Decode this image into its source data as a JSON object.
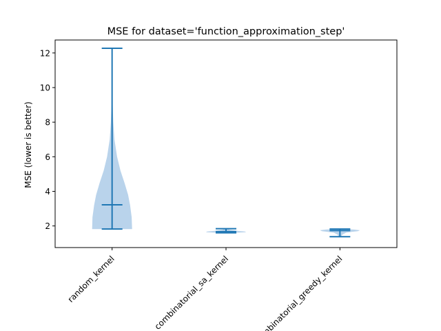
{
  "chart_data": {
    "type": "violin",
    "title": "MSE for dataset='function_approximation_step'",
    "xlabel": "",
    "ylabel": "MSE (lower is better)",
    "ylim": [
      0.75,
      12.75
    ],
    "yticks": [
      2,
      4,
      6,
      8,
      10,
      12
    ],
    "grid": false,
    "categories": [
      "random_kernel",
      "combinatorial_sa_kernel",
      "combinatorial_greedy_kernel"
    ],
    "series": [
      {
        "category": "random_kernel",
        "min": 1.82,
        "max": 12.27,
        "mean": 3.22,
        "density": [
          [
            1.82,
            1.0
          ],
          [
            2.5,
            0.98
          ],
          [
            3.2,
            0.9
          ],
          [
            3.8,
            0.8
          ],
          [
            4.5,
            0.62
          ],
          [
            5.2,
            0.42
          ],
          [
            6.0,
            0.25
          ],
          [
            7.0,
            0.12
          ],
          [
            8.0,
            0.06
          ],
          [
            9.0,
            0.03
          ],
          [
            10.5,
            0.015
          ],
          [
            12.27,
            0.005
          ]
        ]
      },
      {
        "category": "combinatorial_sa_kernel",
        "min": 1.6,
        "max": 1.84,
        "mean": 1.67,
        "density": [
          [
            1.6,
            0.3
          ],
          [
            1.64,
            1.0
          ],
          [
            1.68,
            0.95
          ],
          [
            1.72,
            0.55
          ],
          [
            1.78,
            0.18
          ],
          [
            1.84,
            0.05
          ]
        ]
      },
      {
        "category": "combinatorial_greedy_kernel",
        "min": 1.38,
        "max": 1.82,
        "mean": 1.73,
        "density": [
          [
            1.38,
            0.06
          ],
          [
            1.5,
            0.12
          ],
          [
            1.62,
            0.32
          ],
          [
            1.7,
            0.9
          ],
          [
            1.75,
            1.0
          ],
          [
            1.79,
            0.7
          ],
          [
            1.82,
            0.25
          ]
        ]
      }
    ],
    "colors": {
      "body": "#a8c8e6",
      "lines": "#1f77b4"
    }
  }
}
